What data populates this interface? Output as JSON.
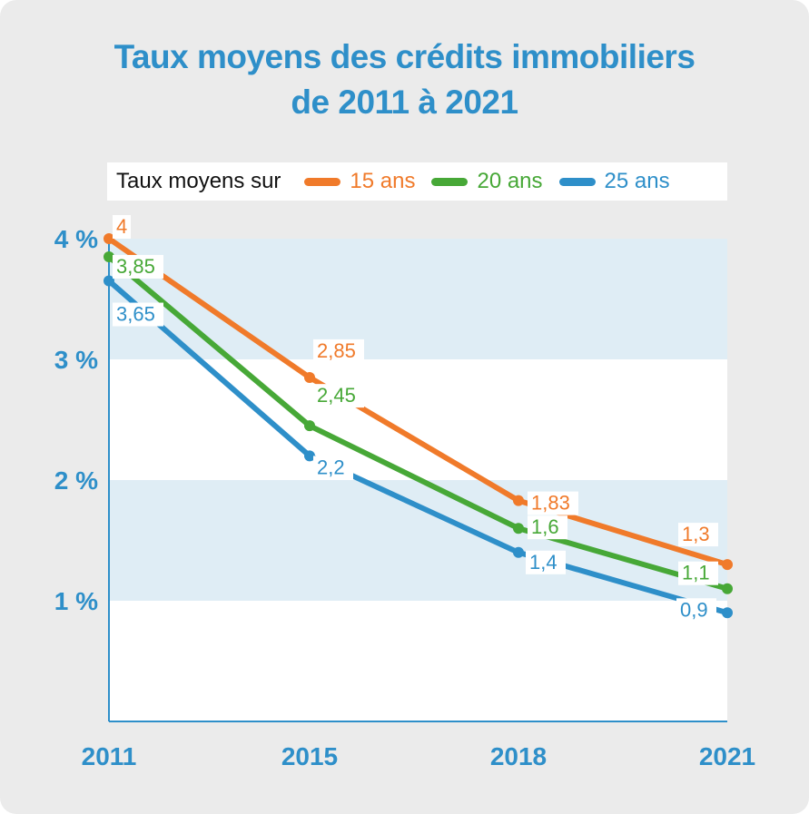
{
  "title_line1": "Taux moyens des crédits immobiliers",
  "title_line2": "de 2011 à 2021",
  "legend": {
    "label": "Taux moyens sur",
    "items": [
      {
        "name": "15 ans",
        "color": "#f07a2a"
      },
      {
        "name": "20 ans",
        "color": "#47a837"
      },
      {
        "name": "25 ans",
        "color": "#2e8fc9"
      }
    ]
  },
  "chart_data": {
    "type": "line",
    "title": "Taux moyens des crédits immobiliers de 2011 à 2021",
    "x": [
      "2011",
      "2015",
      "2018",
      "2021"
    ],
    "yticks": [
      "1 %",
      "2 %",
      "3 %",
      "4 %"
    ],
    "ytick_values": [
      1,
      2,
      3,
      4
    ],
    "ylim": [
      0,
      4
    ],
    "band_color": "#dfedf5",
    "axis_color": "#2e8fc9",
    "series": [
      {
        "name": "15 ans",
        "color": "#f07a2a",
        "values": [
          4,
          2.85,
          1.83,
          1.3
        ],
        "labels": [
          "4",
          "2,85",
          "1,83",
          "1,3"
        ]
      },
      {
        "name": "20 ans",
        "color": "#47a837",
        "values": [
          3.85,
          2.45,
          1.6,
          1.1
        ],
        "labels": [
          "3,85",
          "2,45",
          "1,6",
          "1,1"
        ]
      },
      {
        "name": "25 ans",
        "color": "#2e8fc9",
        "values": [
          3.65,
          2.2,
          1.4,
          0.9
        ],
        "labels": [
          "3,65",
          "2,2",
          "1,4",
          "0,9"
        ]
      }
    ]
  }
}
